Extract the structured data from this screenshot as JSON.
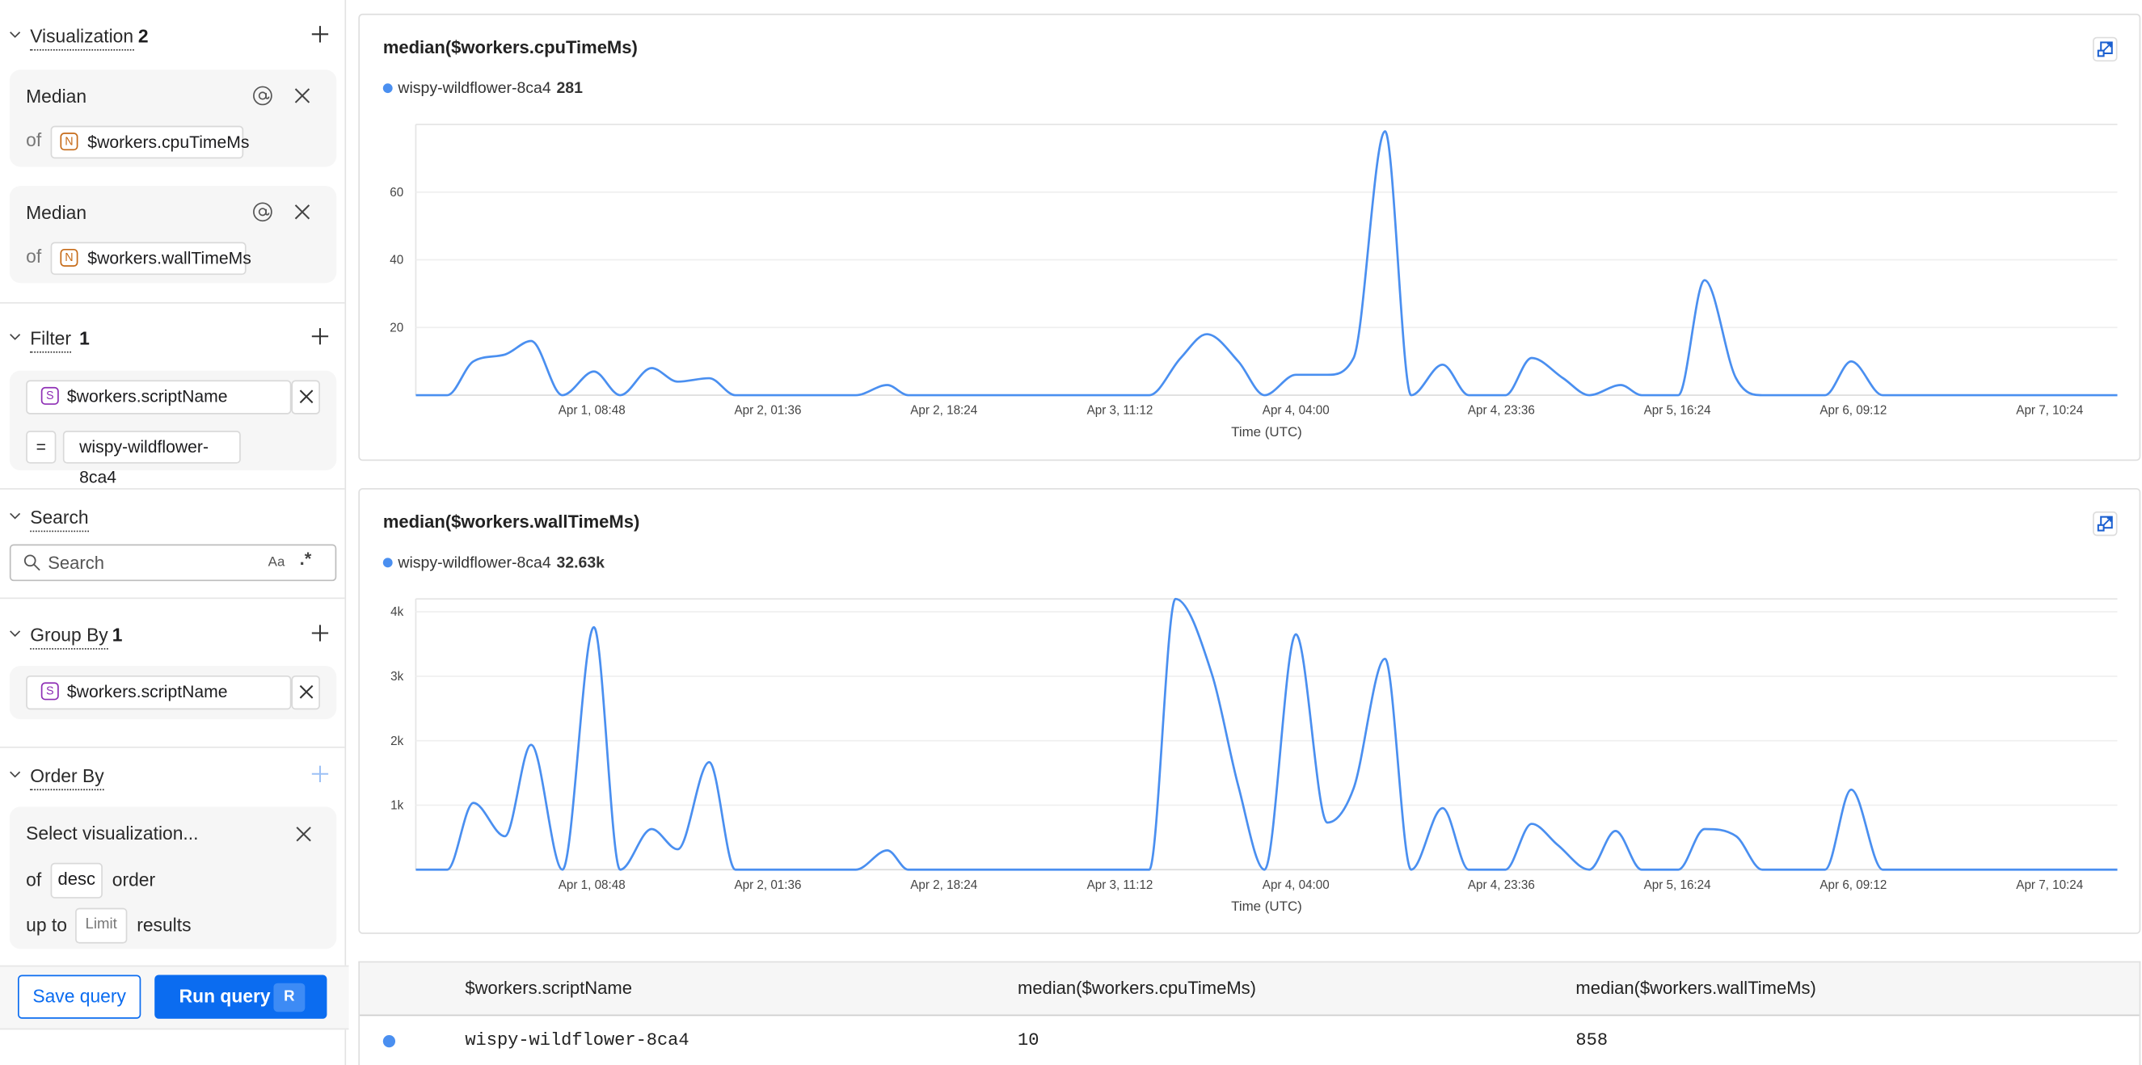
{
  "sidebar": {
    "visualization": {
      "title": "Visualization",
      "count": "2",
      "items": [
        {
          "function": "Median",
          "of_label": "of",
          "field_type": "N",
          "field": "$workers.cpuTimeMs"
        },
        {
          "function": "Median",
          "of_label": "of",
          "field_type": "N",
          "field": "$workers.wallTimeMs"
        }
      ]
    },
    "filter": {
      "title": "Filter",
      "count": "1",
      "field_type": "S",
      "field": "$workers.scriptName",
      "operator": "=",
      "value": "wispy-wildflower-8ca4"
    },
    "search": {
      "title": "Search",
      "placeholder": "Search",
      "case_toggle": "Aa",
      "regex_toggle": ".*"
    },
    "group_by": {
      "title": "Group By",
      "count": "1",
      "field_type": "S",
      "field": "$workers.scriptName"
    },
    "order_by": {
      "title": "Order By",
      "select_placeholder": "Select visualization...",
      "of_label": "of",
      "direction": "desc",
      "order_label": "order",
      "up_to_label": "up to",
      "limit_placeholder": "Limit",
      "results_label": "results"
    },
    "footer": {
      "save_label": "Save query",
      "run_label": "Run query",
      "run_shortcut": "R"
    }
  },
  "colors": {
    "accent": "#0b6cf0",
    "series": "#4a8ff0",
    "number_badge": "#c66a17",
    "string_badge": "#8e2fb5"
  },
  "chart_data": [
    {
      "type": "line",
      "title": "median($workers.cpuTimeMs)",
      "xlabel": "Time (UTC)",
      "ylabel": "",
      "xlim": [
        "Mar 31, 16:00",
        "Apr 7, 10:24"
      ],
      "ylim": [
        0,
        80
      ],
      "yticks": [
        {
          "value": 20,
          "label": "20"
        },
        {
          "value": 40,
          "label": "40"
        },
        {
          "value": 60,
          "label": "60"
        }
      ],
      "xticks": [
        "Apr 1, 08:48",
        "Apr 2, 01:36",
        "Apr 2, 18:24",
        "Apr 3, 11:12",
        "Apr 4, 04:00",
        "Apr 4, 23:36",
        "Apr 5, 16:24",
        "Apr 6, 09:12",
        "Apr 7, 10:24"
      ],
      "grid": true,
      "legend": "top-left",
      "series": [
        {
          "name": "wispy-wildflower-8ca4",
          "legend_value": "281",
          "points": [
            [
              "Mar 31, 16:00",
              0
            ],
            [
              "Mar 31, 19:00",
              0
            ],
            [
              "Mar 31, 21:30",
              10
            ],
            [
              "Apr 1, 00:30",
              12
            ],
            [
              "Apr 1, 03:00",
              16
            ],
            [
              "Apr 1, 06:00",
              0
            ],
            [
              "Apr 1, 09:00",
              7
            ],
            [
              "Apr 1, 11:30",
              0
            ],
            [
              "Apr 1, 14:30",
              8
            ],
            [
              "Apr 1, 17:00",
              4
            ],
            [
              "Apr 1, 20:00",
              5
            ],
            [
              "Apr 1, 22:30",
              0
            ],
            [
              "Apr 2, 10:00",
              0
            ],
            [
              "Apr 2, 13:00",
              3
            ],
            [
              "Apr 2, 15:00",
              0
            ],
            [
              "Apr 3, 14:00",
              0
            ],
            [
              "Apr 3, 17:00",
              11
            ],
            [
              "Apr 3, 19:30",
              18
            ],
            [
              "Apr 3, 22:30",
              10
            ],
            [
              "Apr 4, 01:00",
              0
            ],
            [
              "Apr 4, 04:00",
              6
            ],
            [
              "Apr 4, 07:00",
              6
            ],
            [
              "Apr 4, 09:30",
              11
            ],
            [
              "Apr 4, 12:30",
              78
            ],
            [
              "Apr 4, 15:00",
              0
            ],
            [
              "Apr 4, 18:00",
              9
            ],
            [
              "Apr 4, 20:30",
              0
            ],
            [
              "Apr 5, 00:00",
              0
            ],
            [
              "Apr 5, 02:30",
              11
            ],
            [
              "Apr 5, 05:30",
              5
            ],
            [
              "Apr 5, 08:00",
              0
            ],
            [
              "Apr 5, 11:00",
              3
            ],
            [
              "Apr 5, 13:00",
              0
            ],
            [
              "Apr 5, 16:30",
              0
            ],
            [
              "Apr 5, 19:00",
              34
            ],
            [
              "Apr 5, 22:00",
              5
            ],
            [
              "Apr 6, 00:30",
              0
            ],
            [
              "Apr 6, 06:30",
              0
            ],
            [
              "Apr 6, 09:00",
              10
            ],
            [
              "Apr 6, 12:00",
              0
            ],
            [
              "Apr 7, 10:24",
              0
            ]
          ]
        }
      ]
    },
    {
      "type": "line",
      "title": "median($workers.wallTimeMs)",
      "xlabel": "Time (UTC)",
      "ylabel": "",
      "xlim": [
        "Mar 31, 16:00",
        "Apr 7, 10:24"
      ],
      "ylim": [
        0,
        4200
      ],
      "yticks": [
        {
          "value": 1000,
          "label": "1k"
        },
        {
          "value": 2000,
          "label": "2k"
        },
        {
          "value": 3000,
          "label": "3k"
        },
        {
          "value": 4000,
          "label": "4k"
        }
      ],
      "xticks": [
        "Apr 1, 08:48",
        "Apr 2, 01:36",
        "Apr 2, 18:24",
        "Apr 3, 11:12",
        "Apr 4, 04:00",
        "Apr 4, 23:36",
        "Apr 5, 16:24",
        "Apr 6, 09:12",
        "Apr 7, 10:24"
      ],
      "grid": true,
      "legend": "top-left",
      "series": [
        {
          "name": "wispy-wildflower-8ca4",
          "legend_value": "32.63k",
          "points": [
            [
              "Mar 31, 16:00",
              0
            ],
            [
              "Mar 31, 19:00",
              0
            ],
            [
              "Mar 31, 21:30",
              1036
            ],
            [
              "Apr 1, 00:30",
              518
            ],
            [
              "Apr 1, 03:00",
              1937
            ],
            [
              "Apr 1, 06:00",
              0
            ],
            [
              "Apr 1, 09:00",
              3761
            ],
            [
              "Apr 1, 11:30",
              0
            ],
            [
              "Apr 1, 14:30",
              630
            ],
            [
              "Apr 1, 17:00",
              315
            ],
            [
              "Apr 1, 20:00",
              1667
            ],
            [
              "Apr 1, 22:30",
              0
            ],
            [
              "Apr 2, 10:00",
              0
            ],
            [
              "Apr 2, 13:00",
              300
            ],
            [
              "Apr 2, 15:00",
              0
            ],
            [
              "Apr 3, 14:00",
              0
            ],
            [
              "Apr 3, 16:30",
              4200
            ],
            [
              "Apr 3, 20:00",
              3020
            ],
            [
              "Apr 3, 22:30",
              1300
            ],
            [
              "Apr 4, 01:00",
              0
            ],
            [
              "Apr 4, 04:00",
              3650
            ],
            [
              "Apr 4, 07:00",
              730
            ],
            [
              "Apr 4, 09:30",
              1260
            ],
            [
              "Apr 4, 12:30",
              3270
            ],
            [
              "Apr 4, 15:00",
              0
            ],
            [
              "Apr 4, 18:00",
              955
            ],
            [
              "Apr 4, 20:30",
              0
            ],
            [
              "Apr 5, 00:00",
              0
            ],
            [
              "Apr 5, 02:30",
              710
            ],
            [
              "Apr 5, 05:00",
              380
            ],
            [
              "Apr 5, 08:00",
              0
            ],
            [
              "Apr 5, 10:30",
              600
            ],
            [
              "Apr 5, 13:00",
              0
            ],
            [
              "Apr 5, 16:30",
              0
            ],
            [
              "Apr 5, 19:00",
              630
            ],
            [
              "Apr 5, 22:00",
              520
            ],
            [
              "Apr 6, 00:30",
              0
            ],
            [
              "Apr 6, 06:30",
              0
            ],
            [
              "Apr 6, 09:00",
              1240
            ],
            [
              "Apr 6, 12:00",
              0
            ],
            [
              "Apr 7, 10:24",
              0
            ]
          ]
        }
      ]
    }
  ],
  "table": {
    "columns": [
      "$workers.scriptName",
      "median($workers.cpuTimeMs)",
      "median($workers.wallTimeMs)"
    ],
    "rows": [
      [
        "wispy-wildflower-8ca4",
        "10",
        "858"
      ]
    ]
  }
}
